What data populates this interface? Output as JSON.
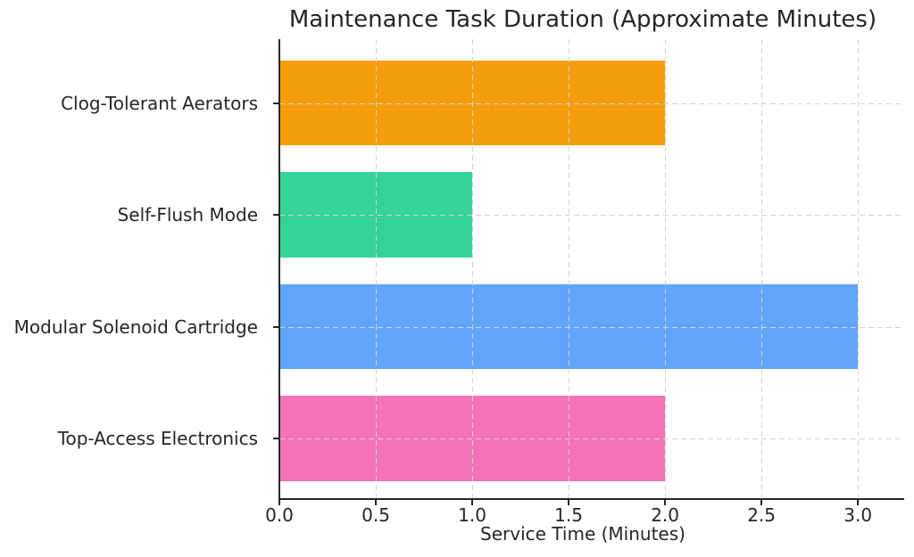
{
  "chart_data": {
    "type": "bar",
    "orientation": "horizontal",
    "title": "Maintenance Task Duration (Approximate Minutes)",
    "xlabel": "Service Time (Minutes)",
    "ylabel": "",
    "categories": [
      "Clog-Tolerant Aerators",
      "Self-Flush Mode",
      "Modular Solenoid Cartridge",
      "Top-Access Electronics"
    ],
    "values": [
      2.0,
      1.0,
      3.0,
      2.0
    ],
    "bar_colors": [
      "#f59e0b",
      "#34d399",
      "#60a5fa",
      "#f472b6"
    ],
    "xlim": [
      0,
      3.24
    ],
    "ylim": [
      -0.57,
      3.54
    ],
    "bar_thickness": 0.76,
    "xticks": [
      0,
      0.5,
      1,
      1.5,
      2,
      2.5,
      3
    ],
    "xtick_labels": [
      "0.0",
      "0.5",
      "1.0",
      "1.5",
      "2.0",
      "2.5",
      "3.0"
    ],
    "grid": true,
    "grid_style": "dashed",
    "grid_above_bars": true,
    "legend_position": "none"
  },
  "style": {
    "text_color": "#262626",
    "spine_color": "#262626",
    "grid_color": "#d4d4d4",
    "background": "#ffffff"
  }
}
